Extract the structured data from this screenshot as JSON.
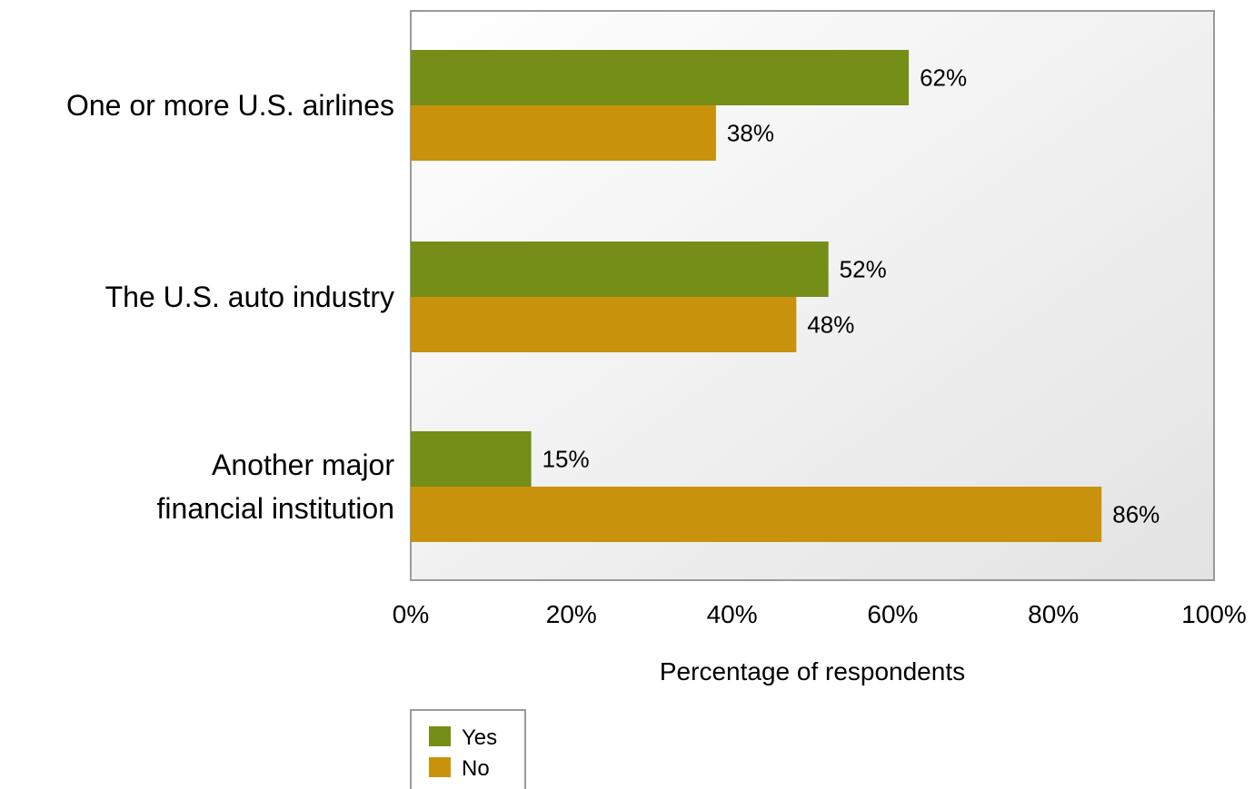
{
  "chart_data": {
    "type": "bar",
    "orientation": "horizontal",
    "categories": [
      [
        "One or more U.S. airlines"
      ],
      [
        "The U.S. auto industry"
      ],
      [
        "Another major",
        "financial institution"
      ]
    ],
    "series": [
      {
        "name": "Yes",
        "color": "#758e18",
        "values": [
          62,
          52,
          15
        ],
        "labels": [
          "62%",
          "52%",
          "15%"
        ]
      },
      {
        "name": "No",
        "color": "#c9920d",
        "values": [
          38,
          48,
          86
        ],
        "labels": [
          "38%",
          "48%",
          "86%"
        ]
      }
    ],
    "xlabel": "Percentage of respondents",
    "xlim": [
      0,
      100
    ],
    "xticks": [
      0,
      20,
      40,
      60,
      80,
      100
    ],
    "xtick_labels": [
      "0%",
      "20%",
      "40%",
      "60%",
      "80%",
      "100%"
    ],
    "grid": false,
    "legend_position": "bottom"
  }
}
